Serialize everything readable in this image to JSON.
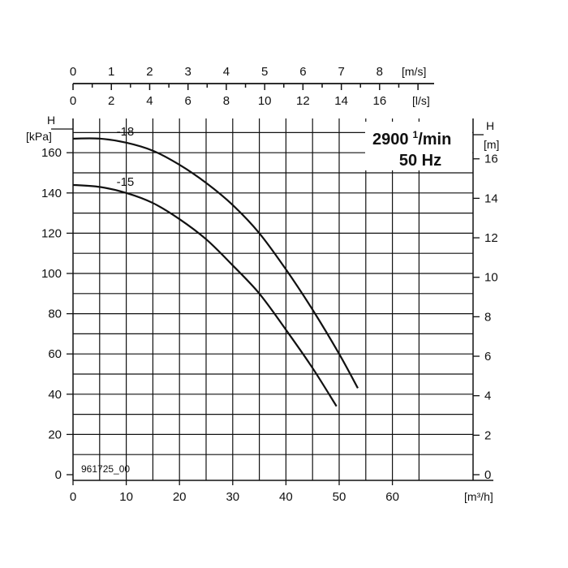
{
  "chart_data": {
    "type": "line",
    "title": "",
    "speed_label": {
      "rpm": "2900",
      "rpm_sup": "1",
      "rpm_unit": "/min",
      "freq": "50 Hz"
    },
    "figure_code": "961725_00",
    "x": {
      "unit": "[m³/h]",
      "lim": [
        0,
        70
      ],
      "ticks": [
        0,
        10,
        20,
        30,
        40,
        50,
        60
      ],
      "grid": true
    },
    "y_left": {
      "symbol": "H",
      "unit": "[kPa]",
      "lim": [
        0,
        180
      ],
      "ticks": [
        0,
        20,
        40,
        60,
        80,
        100,
        120,
        140,
        160
      ],
      "grid": true
    },
    "y_right": {
      "symbol": "H",
      "unit": "[m]",
      "ticks": [
        0,
        2,
        4,
        6,
        8,
        10,
        12,
        14,
        16
      ]
    },
    "top_axis_ms": {
      "unit": "[m/s]",
      "ticks": [
        0,
        1,
        2,
        3,
        4,
        5,
        6,
        7,
        8
      ],
      "x_at_tick": [
        0,
        7.2,
        14.4,
        21.6,
        28.8,
        36,
        43.2,
        50.4,
        57.6
      ]
    },
    "top_axis_ls": {
      "unit": "[l/s]",
      "ticks": [
        0,
        2,
        4,
        6,
        8,
        10,
        12,
        14,
        16
      ],
      "x_at_tick": [
        0,
        7.2,
        14.4,
        21.6,
        28.8,
        36,
        43.2,
        50.4,
        57.6
      ]
    },
    "series": [
      {
        "name": "-18",
        "x": [
          0,
          5,
          10,
          15,
          20,
          25,
          30,
          35,
          40,
          45,
          50,
          53.5
        ],
        "y": [
          167,
          167,
          165,
          161,
          154,
          145,
          134,
          120,
          102,
          82,
          60,
          43
        ]
      },
      {
        "name": "-15",
        "x": [
          0,
          5,
          10,
          15,
          20,
          25,
          30,
          35,
          40,
          45,
          49.5
        ],
        "y": [
          144,
          143,
          140,
          135,
          127,
          117,
          104,
          90,
          72,
          53,
          34
        ]
      }
    ]
  }
}
